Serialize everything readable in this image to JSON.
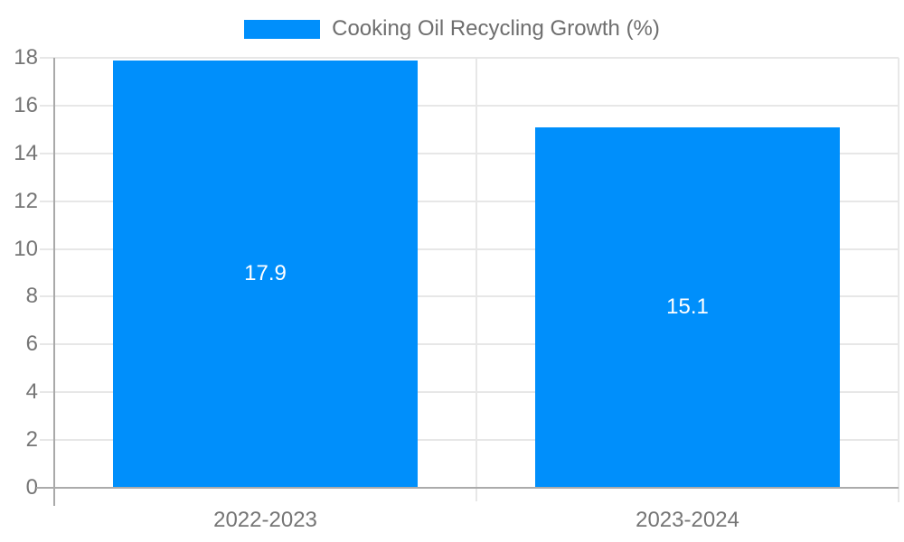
{
  "chart_data": {
    "type": "bar",
    "title": "Cooking Oil Recycling Growth (%)",
    "categories": [
      "2022-2023",
      "2023-2024"
    ],
    "values": [
      17.9,
      15.1
    ],
    "value_labels": [
      "17.9",
      "15.1"
    ],
    "ylim": [
      0,
      18
    ],
    "ytick_step": 2,
    "yticks": [
      0,
      2,
      4,
      6,
      8,
      10,
      12,
      14,
      16,
      18
    ],
    "legend": {
      "position": "top",
      "label": "Cooking Oil Recycling Growth (%)"
    },
    "grid": true,
    "colors": {
      "bar": "#008FFB",
      "grid": "#e7e7e7",
      "grid_right": "#e8e8e8",
      "axis": "#a9a9a9",
      "baseline": "#ababab",
      "tick_text": "#757575",
      "legend_text": "#6e6e6e",
      "value_text": "#ffffff",
      "background": "#ffffff"
    }
  }
}
